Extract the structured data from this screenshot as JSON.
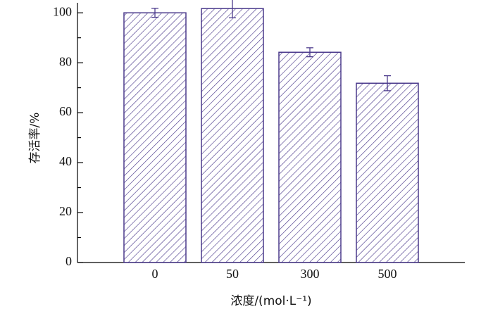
{
  "chart_data": {
    "type": "bar",
    "categories": [
      "0",
      "50",
      "300",
      "500"
    ],
    "values": [
      100,
      101.7,
      84.2,
      71.8
    ],
    "errors": [
      1.8,
      3.7,
      1.8,
      3.0
    ],
    "color": "#4b3a8c",
    "ylim": [
      0,
      104
    ],
    "yticks": [
      0,
      20,
      40,
      60,
      80,
      100
    ],
    "yminorticks": [
      10,
      30,
      50,
      70,
      90
    ],
    "xlabel": "浓度/(mol·L⁻¹)",
    "ylabel": "存活率/%",
    "grid": false
  }
}
